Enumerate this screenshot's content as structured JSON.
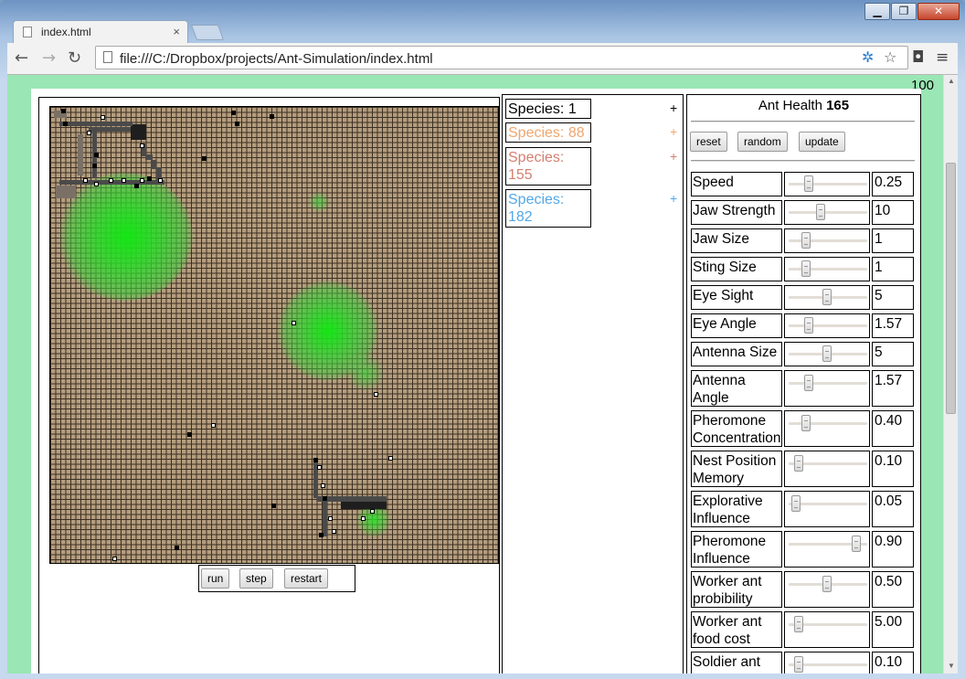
{
  "window": {
    "minimize": "▁",
    "maximize": "❐",
    "close": "✕"
  },
  "tab": {
    "title": "index.html",
    "close": "×"
  },
  "toolbar": {
    "back": "←",
    "forward": "→",
    "reload": "↻",
    "url": "file:///C:/Dropbox/projects/Ant-Simulation/index.html",
    "star": "☆",
    "menu": "≡"
  },
  "page": {
    "fps": "100",
    "controls": {
      "run": "run",
      "step": "step",
      "restart": "restart"
    },
    "species": [
      {
        "label": "Species: 1",
        "plus": "+",
        "color": "#000000"
      },
      {
        "label": "Species: 88",
        "plus": "+",
        "color": "#f1a66e"
      },
      {
        "label": "Species: 155",
        "plus": "+",
        "color": "#d47f70"
      },
      {
        "label": "Species: 182",
        "plus": "+",
        "color": "#52a8e6"
      }
    ],
    "settings": {
      "health_label": "Ant Health",
      "health_value": "165",
      "buttons": {
        "reset": "reset",
        "random": "random",
        "update": "update"
      },
      "params": [
        {
          "label": "Speed",
          "value": "0.25",
          "level": 0.22
        },
        {
          "label": "Jaw Strength",
          "value": "10",
          "level": 0.38
        },
        {
          "label": "Jaw Size",
          "value": "1",
          "level": 0.18
        },
        {
          "label": "Sting Size",
          "value": "1",
          "level": 0.18
        },
        {
          "label": "Eye Sight",
          "value": "5",
          "level": 0.48
        },
        {
          "label": "Eye Angle",
          "value": "1.57",
          "level": 0.22
        },
        {
          "label": "Antenna Size",
          "value": "5",
          "level": 0.48
        },
        {
          "label": "Antenna Angle",
          "value": "1.57",
          "level": 0.22
        },
        {
          "label": "Pheromone Concentration",
          "value": "0.40",
          "level": 0.18
        },
        {
          "label": "Nest Position Memory",
          "value": "0.10",
          "level": 0.08
        },
        {
          "label": "Explorative Influence",
          "value": "0.05",
          "level": 0.04
        },
        {
          "label": "Pheromone Influence",
          "value": "0.90",
          "level": 0.88
        },
        {
          "label": "Worker ant probibility",
          "value": "0.50",
          "level": 0.48
        },
        {
          "label": "Worker ant food cost",
          "value": "5.00",
          "level": 0.08
        },
        {
          "label": "Soldier ant",
          "value": "0.10",
          "level": 0.08
        }
      ]
    }
  }
}
